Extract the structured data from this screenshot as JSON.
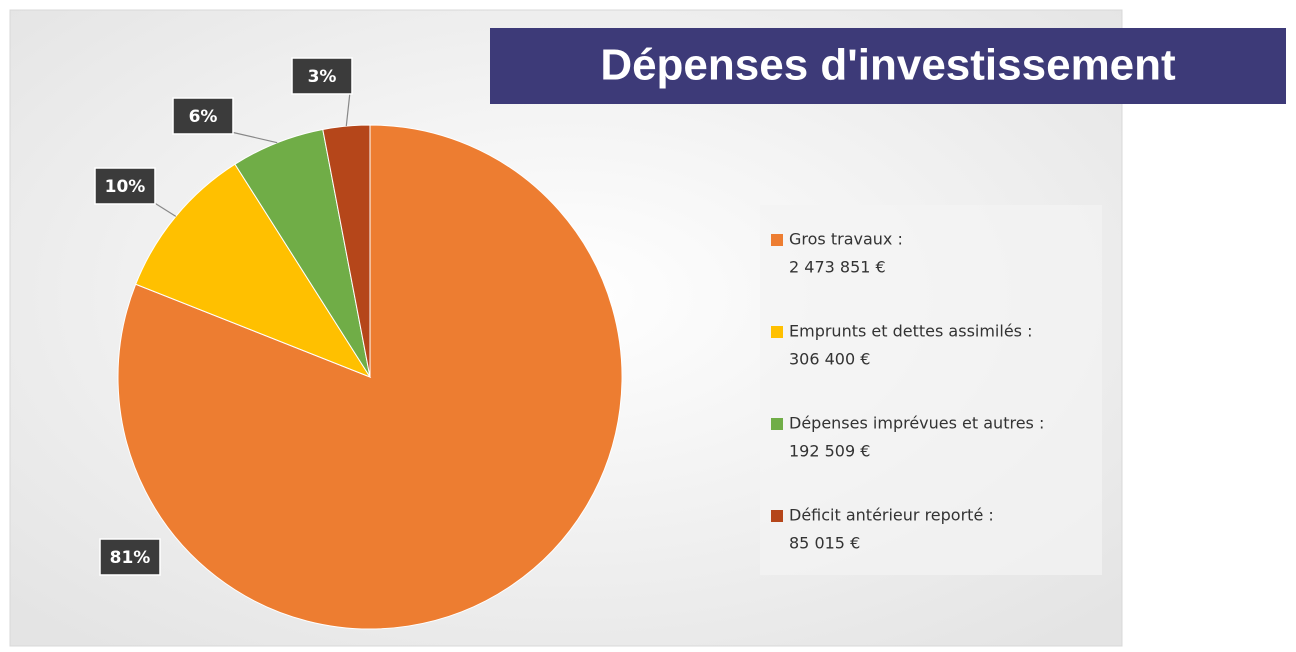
{
  "chart_data": {
    "type": "pie",
    "title": "Dépenses d'investissement",
    "categories": [
      "Gros travaux :",
      "Emprunts et dettes assimilés :",
      "Dépenses imprévues et autres :",
      "Déficit antérieur reporté :"
    ],
    "legend_amounts": [
      "2 473 851 €",
      "306 400 €",
      "192 509 €",
      "85 015 €"
    ],
    "values": [
      81,
      10,
      6,
      3
    ],
    "value_labels": [
      "81%",
      "10%",
      "6%",
      "3%"
    ],
    "colors": [
      "#ed7d31",
      "#ffc000",
      "#70ad47",
      "#b5461a"
    ]
  }
}
